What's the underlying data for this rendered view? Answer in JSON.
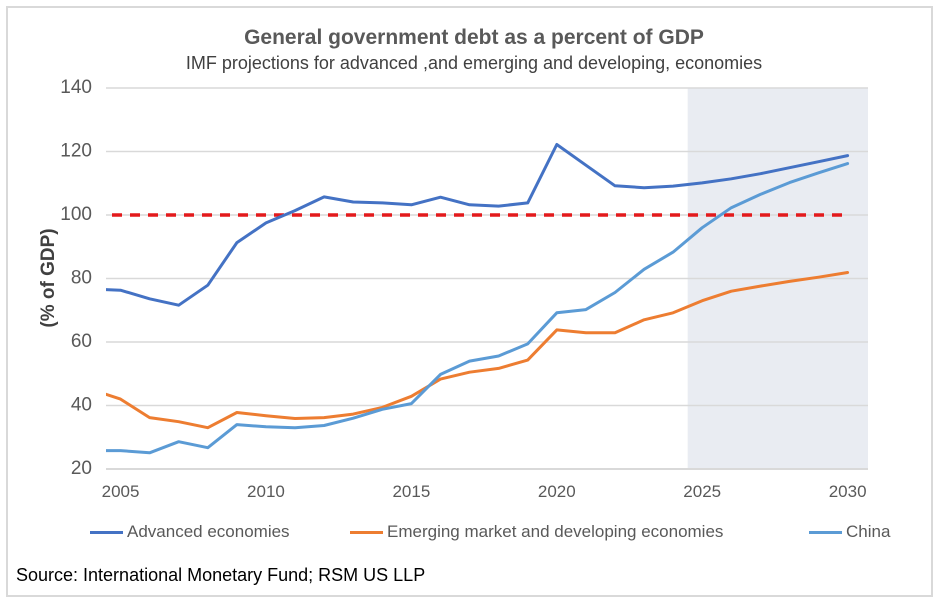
{
  "chart_data": {
    "type": "line",
    "title": "General government debt as a percent of GDP",
    "subtitle": "IMF projections for advanced ,and emerging and developing, economies",
    "xlabel": "",
    "ylabel": "(% of GDP)",
    "ylim": [
      20,
      140
    ],
    "xlim": [
      2004.5,
      2030.7
    ],
    "yticks": [
      "20",
      "40",
      "60",
      "80",
      "100",
      "120",
      "140"
    ],
    "xticks": [
      "2005",
      "2010",
      "2015",
      "2020",
      "2025",
      "2030"
    ],
    "grid": true,
    "projection_shading": {
      "from": 2024.5,
      "to": 2030.7,
      "color": "#e9ecf2"
    },
    "reference_line": {
      "value": 100,
      "style": "dashed",
      "color": "#e31a1c",
      "from": 2004.5,
      "to": 2030
    },
    "x": [
      2004,
      2005,
      2006,
      2007,
      2008,
      2009,
      2010,
      2011,
      2012,
      2013,
      2014,
      2015,
      2016,
      2017,
      2018,
      2019,
      2020,
      2021,
      2022,
      2023,
      2024,
      2025,
      2026,
      2027,
      2028,
      2029,
      2030
    ],
    "series": [
      {
        "name": "Advanced economies",
        "color": "#4472c4",
        "values": [
          76.7,
          76.3,
          73.6,
          71.6,
          77.9,
          91.3,
          97.5,
          101.4,
          105.7,
          104.1,
          103.8,
          103.2,
          105.6,
          103.2,
          102.8,
          103.8,
          122.2,
          115.7,
          109.2,
          108.6,
          109.1,
          110.1,
          111.4,
          113.0,
          114.9,
          116.8,
          118.7
        ]
      },
      {
        "name": "Emerging market and developing economies",
        "color": "#ed7d31",
        "values": [
          45.0,
          42.0,
          36.2,
          34.9,
          33.0,
          37.8,
          36.8,
          35.9,
          36.2,
          37.3,
          39.4,
          42.9,
          48.3,
          50.5,
          51.7,
          54.3,
          63.8,
          62.9,
          62.9,
          67.0,
          69.2,
          73.0,
          76.0,
          77.6,
          79.1,
          80.4,
          81.9
        ]
      },
      {
        "name": "China",
        "color": "#5b9bd5",
        "values": [
          25.8,
          25.8,
          25.1,
          28.6,
          26.7,
          34.0,
          33.3,
          33.0,
          33.7,
          36.0,
          38.8,
          40.6,
          49.8,
          54.0,
          55.6,
          59.4,
          69.2,
          70.2,
          75.6,
          82.9,
          88.3,
          96.0,
          102.3,
          106.5,
          110.2,
          113.3,
          116.2
        ]
      }
    ],
    "legend_position": "bottom"
  },
  "source": "Source: International Monetary Fund; RSM US LLP"
}
